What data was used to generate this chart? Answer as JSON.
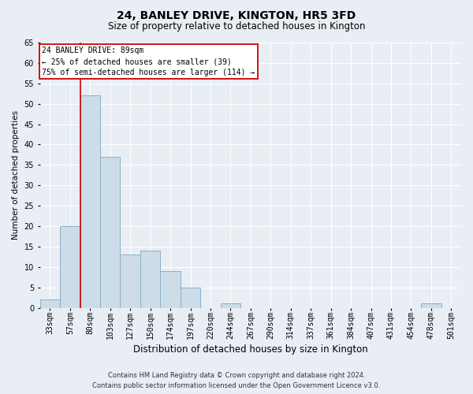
{
  "title": "24, BANLEY DRIVE, KINGTON, HR5 3FD",
  "subtitle": "Size of property relative to detached houses in Kington",
  "xlabel": "Distribution of detached houses by size in Kington",
  "ylabel": "Number of detached properties",
  "footer_line1": "Contains HM Land Registry data © Crown copyright and database right 2024.",
  "footer_line2": "Contains public sector information licensed under the Open Government Licence v3.0.",
  "bar_labels": [
    "33sqm",
    "57sqm",
    "80sqm",
    "103sqm",
    "127sqm",
    "150sqm",
    "174sqm",
    "197sqm",
    "220sqm",
    "244sqm",
    "267sqm",
    "290sqm",
    "314sqm",
    "337sqm",
    "361sqm",
    "384sqm",
    "407sqm",
    "431sqm",
    "454sqm",
    "478sqm",
    "501sqm"
  ],
  "bar_values": [
    2,
    20,
    52,
    37,
    13,
    14,
    9,
    5,
    0,
    1,
    0,
    0,
    0,
    0,
    0,
    0,
    0,
    0,
    0,
    1,
    0
  ],
  "bar_color": "#ccdce8",
  "bar_edge_color": "#8ab0c8",
  "ylim": [
    0,
    65
  ],
  "yticks": [
    0,
    5,
    10,
    15,
    20,
    25,
    30,
    35,
    40,
    45,
    50,
    55,
    60,
    65
  ],
  "red_line_index": 2,
  "red_line_color": "#cc0000",
  "annotation_line1": "24 BANLEY DRIVE: 89sqm",
  "annotation_line2": "← 25% of detached houses are smaller (39)",
  "annotation_line3": "75% of semi-detached houses are larger (114) →",
  "annotation_box_color": "#cc0000",
  "background_color": "#e8eef4",
  "grid_color": "#ffffff",
  "title_fontsize": 10,
  "subtitle_fontsize": 8.5,
  "ylabel_fontsize": 7.5,
  "xlabel_fontsize": 8.5,
  "tick_fontsize": 7,
  "annotation_fontsize": 7,
  "footer_fontsize": 6
}
